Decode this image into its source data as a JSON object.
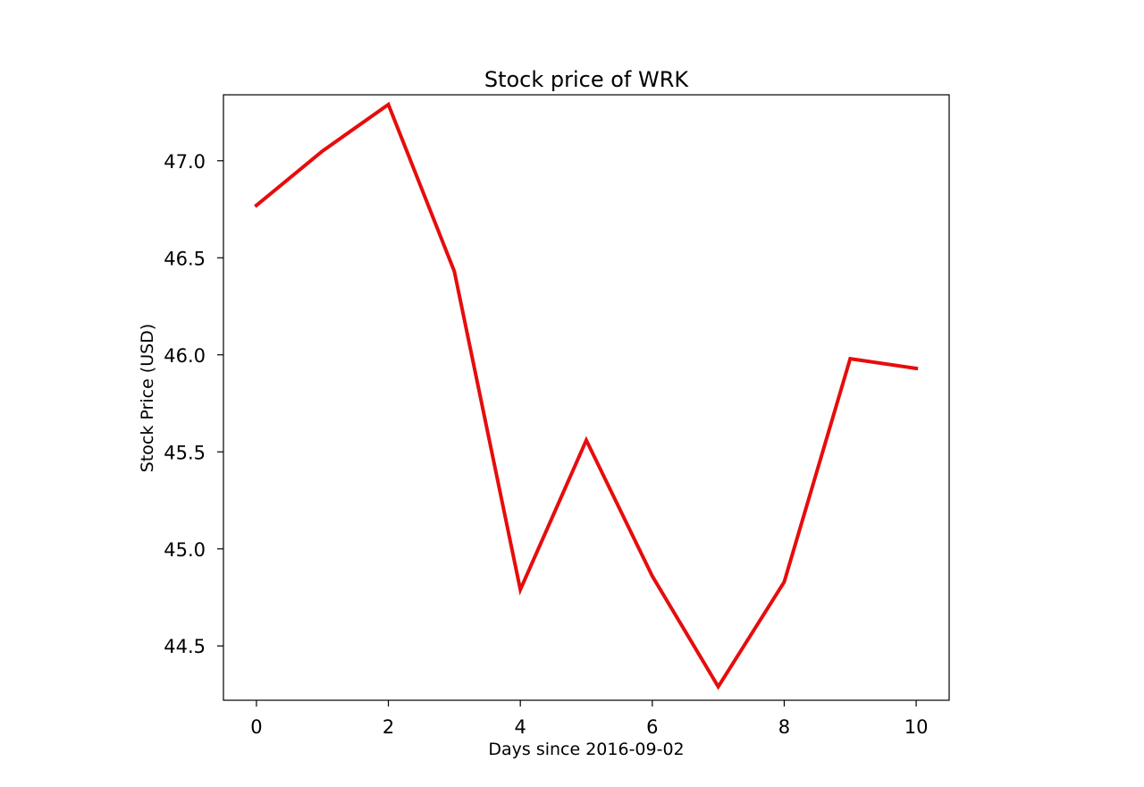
{
  "chart_data": {
    "type": "line",
    "title": "Stock price of WRK",
    "xlabel": "Days since 2016-09-02",
    "ylabel": "Stock Price (USD)",
    "xlim": [
      -0.5,
      10.5
    ],
    "ylim": [
      44.22,
      47.34
    ],
    "xticks": [
      0,
      2,
      4,
      6,
      8,
      10
    ],
    "yticks": [
      44.5,
      45.0,
      45.5,
      46.0,
      46.5,
      47.0
    ],
    "ytick_labels": [
      "44.5",
      "45.0",
      "45.5",
      "46.0",
      "46.5",
      "47.0"
    ],
    "grid": false,
    "series": [
      {
        "color": "#e60d0d",
        "x": [
          0,
          1,
          2,
          3,
          4,
          5,
          6,
          7,
          8,
          9,
          10
        ],
        "values": [
          46.77,
          47.05,
          47.29,
          46.43,
          44.79,
          45.56,
          44.86,
          44.29,
          44.83,
          45.98,
          45.93
        ]
      }
    ]
  }
}
